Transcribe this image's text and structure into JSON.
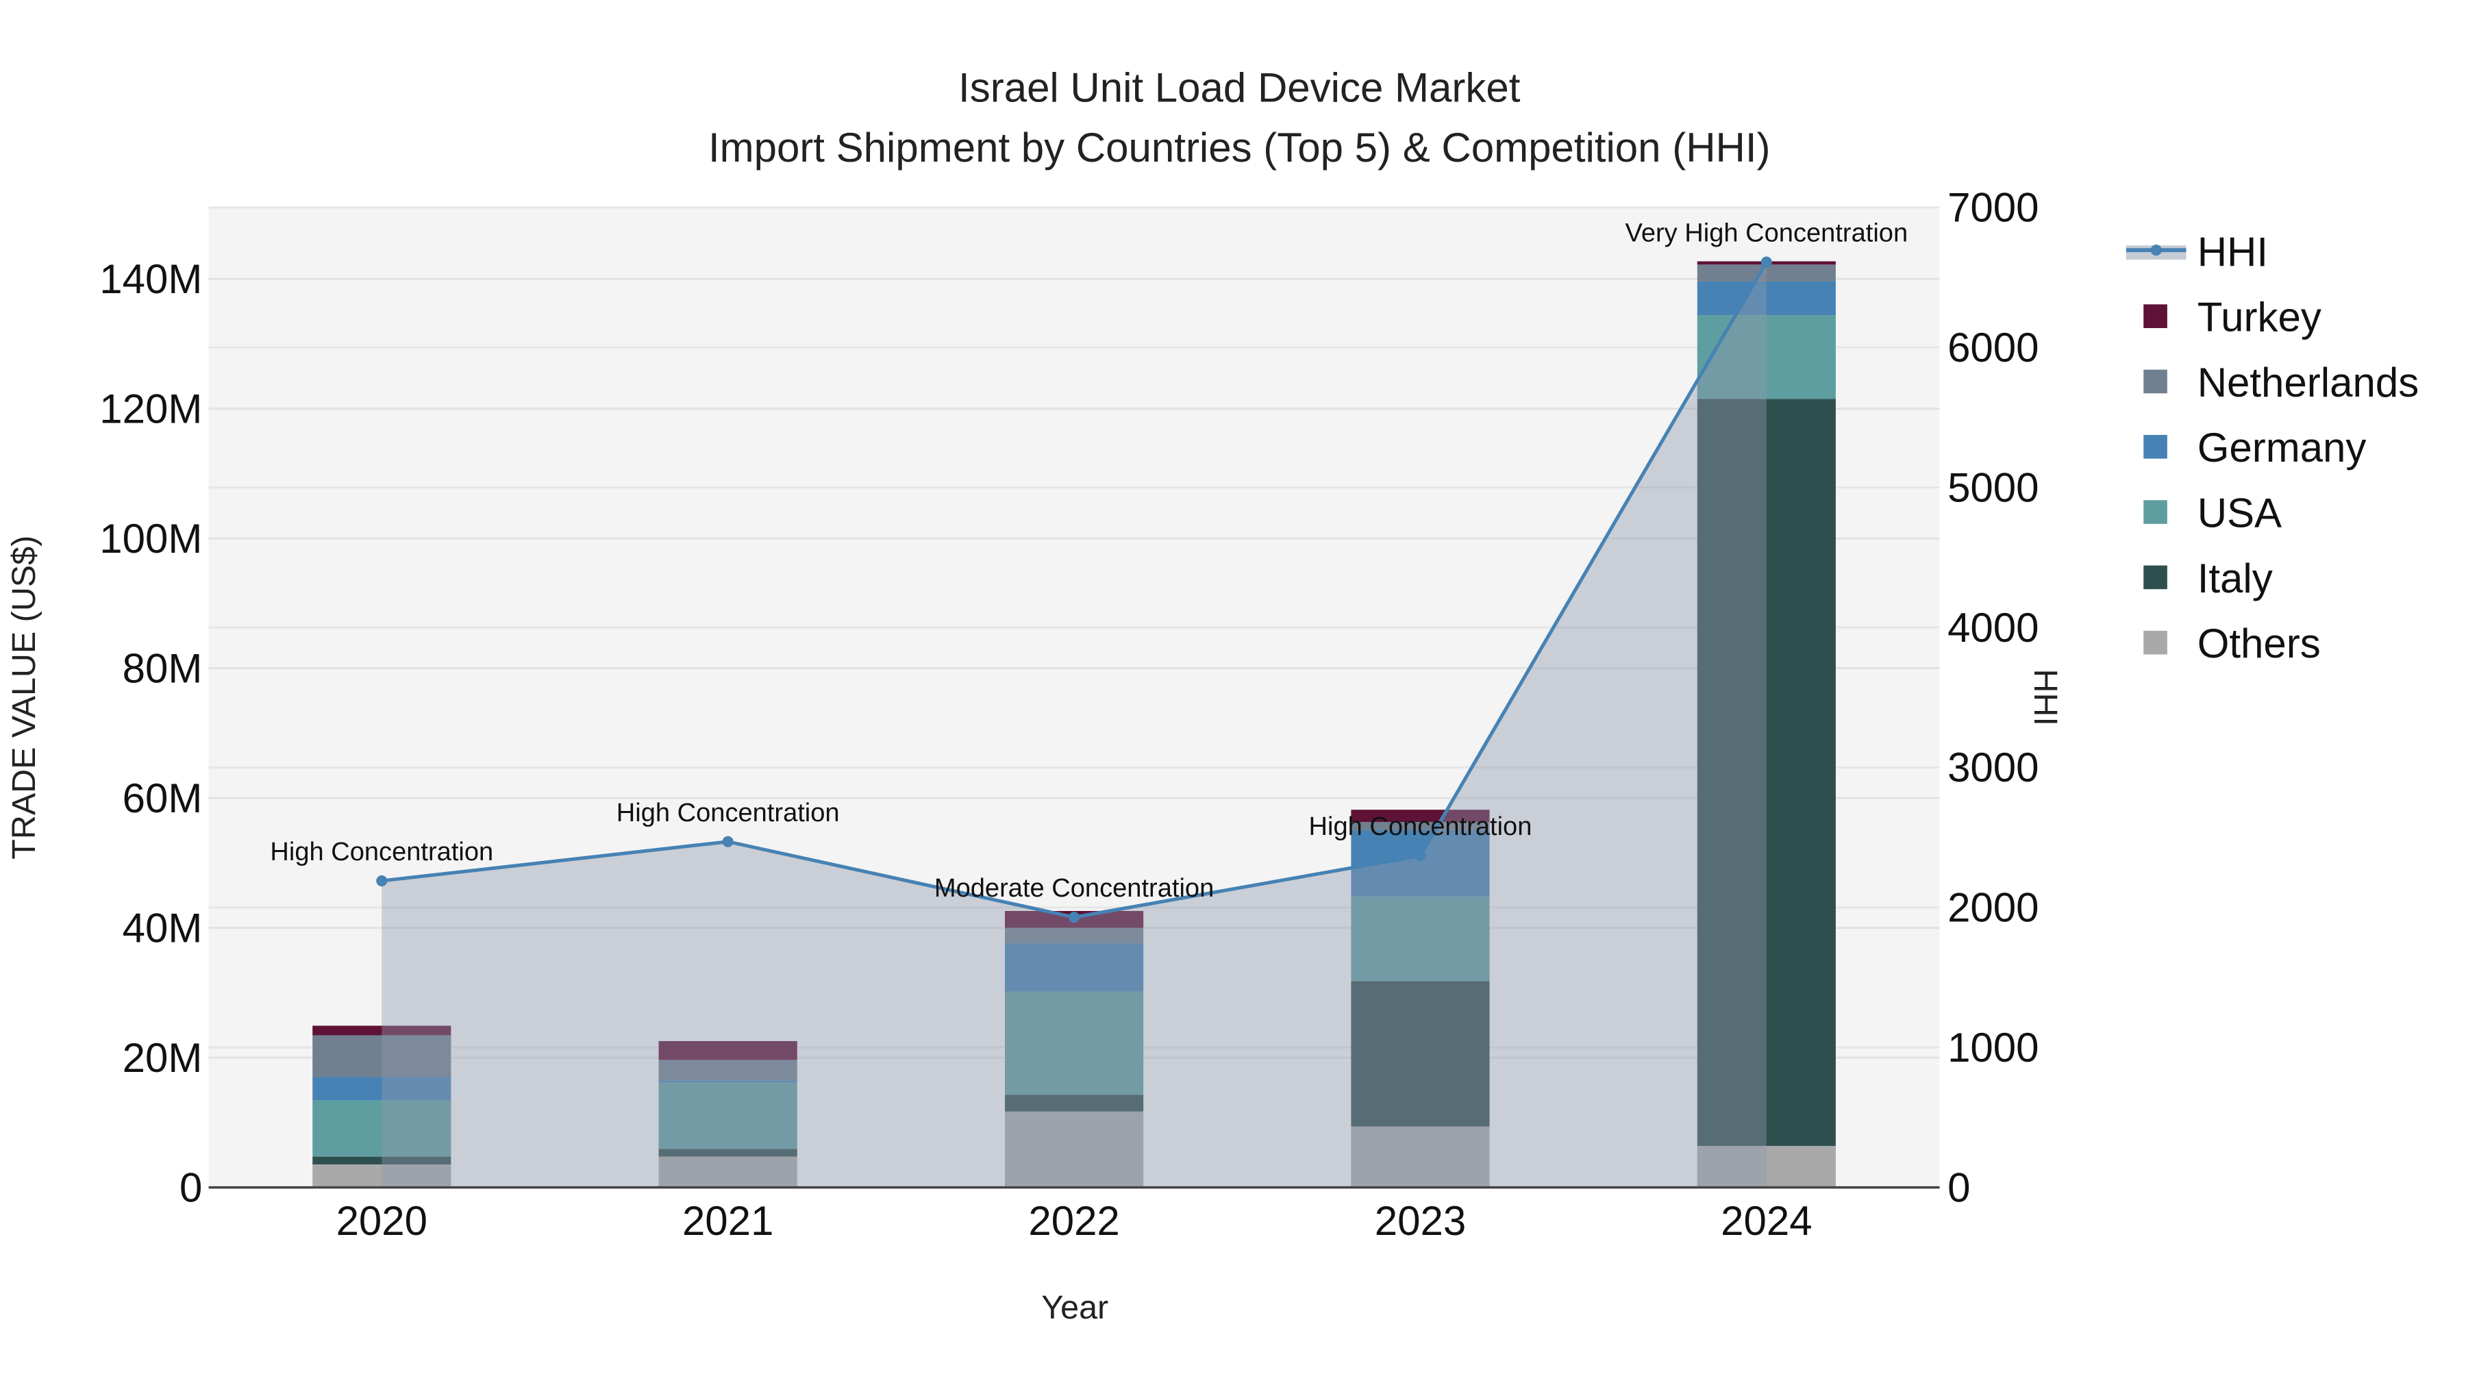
{
  "chart_data": {
    "type": "bar",
    "title": "Israel Unit Load Device Market",
    "subtitle": "Import Shipment by Countries (Top 5) & Competition (HHI)",
    "xlabel": "Year",
    "ylabel": "TRADE VALUE (US$)",
    "y2label": "HHI",
    "categories": [
      "2020",
      "2021",
      "2022",
      "2023",
      "2024"
    ],
    "ylim": [
      0,
      151000000
    ],
    "y2lim": [
      0,
      7000
    ],
    "yticks": [
      0,
      20000000,
      40000000,
      60000000,
      80000000,
      100000000,
      120000000,
      140000000
    ],
    "ytick_labels": [
      "0",
      "20M",
      "40M",
      "60M",
      "80M",
      "100M",
      "120M",
      "140M"
    ],
    "y2ticks": [
      0,
      1000,
      2000,
      3000,
      4000,
      5000,
      6000,
      7000
    ],
    "y2tick_labels": [
      "0",
      "1000",
      "2000",
      "3000",
      "4000",
      "5000",
      "6000",
      "7000"
    ],
    "stacked": true,
    "series": [
      {
        "name": "Others",
        "color": "#a9a9a9",
        "values": [
          3550000,
          4750000,
          11700000,
          9400000,
          6400000
        ]
      },
      {
        "name": "Italy",
        "color": "#2f4f4f",
        "values": [
          1200000,
          1200000,
          2600000,
          22400000,
          115100000
        ]
      },
      {
        "name": "USA",
        "color": "#5f9ea0",
        "values": [
          8660000,
          10200000,
          15900000,
          13000000,
          12900000
        ]
      },
      {
        "name": "Germany",
        "color": "#4682b4",
        "values": [
          3600000,
          350000,
          7400000,
          10200000,
          5200000
        ]
      },
      {
        "name": "Netherlands",
        "color": "#708090",
        "values": [
          6440000,
          3150000,
          2400000,
          1300000,
          2600000
        ]
      },
      {
        "name": "Turkey",
        "color": "#5e1236",
        "values": [
          1470000,
          2900000,
          2600000,
          1900000,
          500000
        ]
      }
    ],
    "line_series": {
      "name": "HHI",
      "axis": "y2",
      "color": "#4682b4",
      "fill": "#8e98ab",
      "values": [
        2190,
        2470,
        1930,
        2370,
        6610
      ],
      "annotations": [
        "High Concentration",
        "High Concentration",
        "Moderate Concentration",
        "High Concentration",
        "Very High Concentration"
      ]
    },
    "legend_order": [
      "HHI",
      "Turkey",
      "Netherlands",
      "Germany",
      "USA",
      "Italy",
      "Others"
    ],
    "legend_position": "right",
    "grid": true
  }
}
